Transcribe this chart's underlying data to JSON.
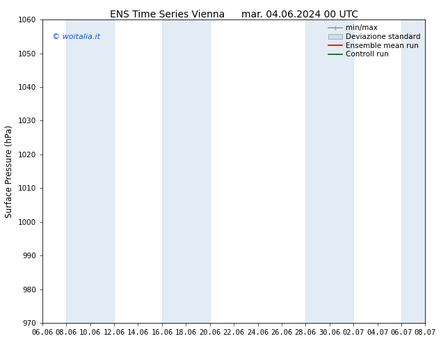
{
  "title_left": "ENS Time Series Vienna",
  "title_right": "mar. 04.06.2024 00 UTC",
  "ylabel": "Surface Pressure (hPa)",
  "ylim": [
    970,
    1060
  ],
  "yticks": [
    970,
    980,
    990,
    1000,
    1010,
    1020,
    1030,
    1040,
    1050,
    1060
  ],
  "xtick_labels": [
    "06.06",
    "08.06",
    "10.06",
    "12.06",
    "14.06",
    "16.06",
    "18.06",
    "20.06",
    "22.06",
    "24.06",
    "26.06",
    "28.06",
    "30.06",
    "02.07",
    "04.07",
    "06.07",
    "08.07"
  ],
  "num_xticks": 17,
  "band_color": "#ccdded",
  "band_alpha": 0.55,
  "band_xranges": [
    [
      1,
      3
    ],
    [
      5,
      7
    ],
    [
      11,
      13
    ],
    [
      15,
      16
    ]
  ],
  "watermark": "© woitalia.it",
  "legend_entries": [
    "min/max",
    "Deviazione standard",
    "Ensemble mean run",
    "Controll run"
  ],
  "legend_line_color": "#999999",
  "legend_fill_color": "#ccdded",
  "legend_red": "#cc0000",
  "legend_green": "#006600",
  "background_color": "#ffffff",
  "fig_width": 6.34,
  "fig_height": 4.9,
  "dpi": 100,
  "title_fontsize": 10,
  "tick_fontsize": 7.5,
  "ylabel_fontsize": 8.5,
  "legend_fontsize": 7.5
}
